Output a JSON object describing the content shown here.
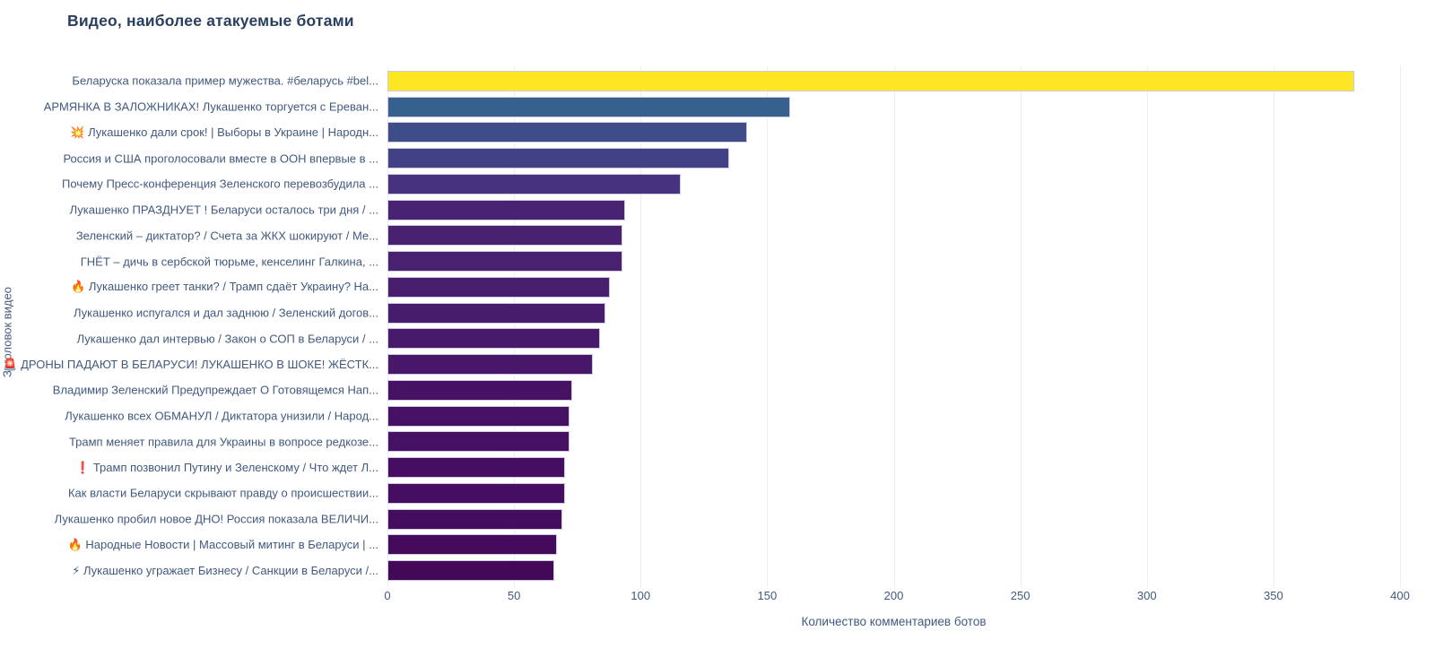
{
  "title": "Видео, наиболее атакуемые ботами",
  "colors": {
    "title": "#2a3f5f",
    "axis_text": "#42597e",
    "gridline": "#e9eef8",
    "bar_border": "#cfc8e2",
    "background": "#ffffff",
    "max_bar": "#fde725",
    "min_bar": "#440859"
  },
  "chart_data": {
    "type": "bar",
    "orientation": "horizontal",
    "title": "Видео, наиболее атакуемые ботами",
    "xlabel": "Количество комментариев ботов",
    "ylabel": "Заголовок видео",
    "xlim": [
      0,
      400
    ],
    "xticks": [
      0,
      50,
      100,
      150,
      200,
      250,
      300,
      350,
      400
    ],
    "grid": true,
    "legend": "none",
    "colormap": "viridis (value-mapped, max=yellow, min=dark purple)",
    "categories": [
      "Беларуска показала пример мужества. #беларусь #bel...",
      "АРМЯНКА В ЗАЛОЖНИКАХ! Лукашенко торгуется с Ереван...",
      "💥 Лукашенко дали срок! | Выборы в Украине | Народн...",
      "Россия и США проголосовали вместе в ООН впервые в ...",
      "Почему Пресс-конференция Зеленского перевозбудила ...",
      "Лукашенко ПРАЗДНУЕТ ! Беларуси осталось три дня / ...",
      "Зеленский – диктатор? / Счета за ЖКХ шокируют / Ме...",
      "ГНЁТ – дичь в сербской тюрьме, кенселинг Галкина, ...",
      "🔥 Лукашенко греет танки? / Трамп сдаёт Украину? На...",
      "Лукашенко испугался и дал заднюю / Зеленский догов...",
      "Лукашенко дал интервью / Закон о СОП в Беларуси / ...",
      "🚨 ДРОНЫ ПАДАЮТ В БЕЛАРУСИ! ЛУКАШЕНКО В ШОКЕ! ЖЁСТК...",
      "Владимир Зеленский Предупреждает О Готовящемся Нап...",
      "Лукашенко всех ОБМАНУЛ / Диктатора унизили / Народ...",
      "Трамп меняет правила для Украины в вопросе редкозе...",
      "❗ Трамп позвонил Путину и Зеленскому / Что ждет Л...",
      "Как власти Беларуси скрывают правду о происшествии...",
      "Лукашенко пробил новое ДНО! Россия показала ВЕЛИЧИ...",
      "🔥 Народные Новости | Массовый митинг в Беларуси | ...",
      "⚡ Лукашенко угражает Бизнесу / Санкции в Беларуси /..."
    ],
    "values": [
      382,
      159,
      142,
      135,
      116,
      94,
      93,
      93,
      88,
      86,
      84,
      81,
      73,
      72,
      72,
      70,
      70,
      69,
      67,
      66
    ],
    "bar_colors": [
      "#fde725",
      "#36618e",
      "#3e4c8a",
      "#424186",
      "#46327e",
      "#482373",
      "#482271",
      "#482271",
      "#481e6f",
      "#481c6d",
      "#471a6b",
      "#471869",
      "#471264",
      "#461162",
      "#461162",
      "#460e60",
      "#460e60",
      "#450d5e",
      "#440a5b",
      "#440859"
    ]
  }
}
